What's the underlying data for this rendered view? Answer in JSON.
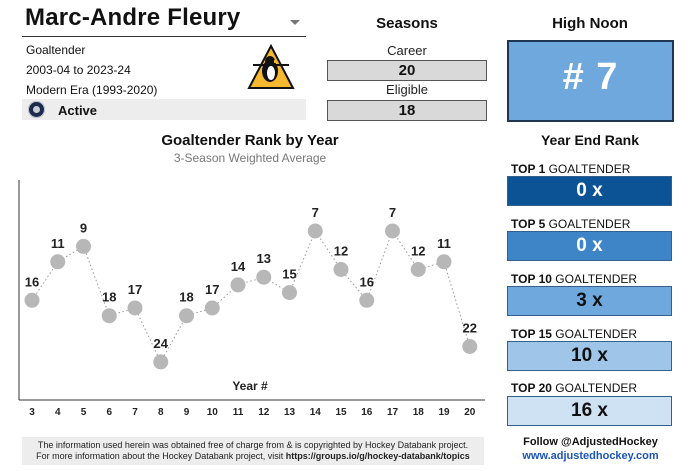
{
  "player": {
    "name": "Marc-Andre Fleury",
    "position": "Goaltender",
    "years": "2003-04 to 2023-24",
    "era": "Modern Era (1993-2020)",
    "status": "Active"
  },
  "seasons": {
    "title": "Seasons",
    "career_label": "Career",
    "career_value": "20",
    "eligible_label": "Eligible",
    "eligible_value": "18"
  },
  "high_noon": {
    "title": "High Noon",
    "value": "# 7"
  },
  "year_end_rank": {
    "title": "Year End Rank",
    "rows": [
      {
        "top": "TOP 1",
        "suffix": "GOALTENDER",
        "value": "0 x",
        "color": "#0b5394",
        "text_color": "#ffffff"
      },
      {
        "top": "TOP 5",
        "suffix": "GOALTENDER",
        "value": "0 x",
        "color": "#3d85c6",
        "text_color": "#ffffff"
      },
      {
        "top": "TOP 10",
        "suffix": "GOALTENDER",
        "value": "3 x",
        "color": "#6fa8dc",
        "text_color": "#111111"
      },
      {
        "top": "TOP 15",
        "suffix": "GOALTENDER",
        "value": "10 x",
        "color": "#9fc5e8",
        "text_color": "#111111"
      },
      {
        "top": "TOP 20",
        "suffix": "GOALTENDER",
        "value": "16 x",
        "color": "#cfe2f3",
        "text_color": "#111111"
      }
    ]
  },
  "chart_data": {
    "type": "line",
    "title": "Goaltender Rank by Year",
    "subtitle": "3-Season Weighted Average",
    "xlabel": "Year #",
    "ylabel": "",
    "x": [
      3,
      4,
      5,
      6,
      7,
      8,
      9,
      10,
      11,
      12,
      13,
      14,
      15,
      16,
      17,
      18,
      19,
      20
    ],
    "values": [
      16,
      11,
      9,
      18,
      17,
      24,
      18,
      17,
      14,
      13,
      15,
      7,
      12,
      16,
      7,
      12,
      11,
      22
    ],
    "y_axis_inverted": true,
    "grid": false,
    "point_color": "#b7b7b7",
    "line_style": "dotted"
  },
  "footer": {
    "line1": "The information used herein was obtained free of charge from & is copyrighted by Hockey Databank project.",
    "line2_prefix": "For more information about the Hockey Databank project, visit ",
    "line2_link": "https://groups.io/g/hockey-databank/topics",
    "follow": "Follow @AdjustedHockey",
    "website": "www.adjustedhockey.com"
  }
}
